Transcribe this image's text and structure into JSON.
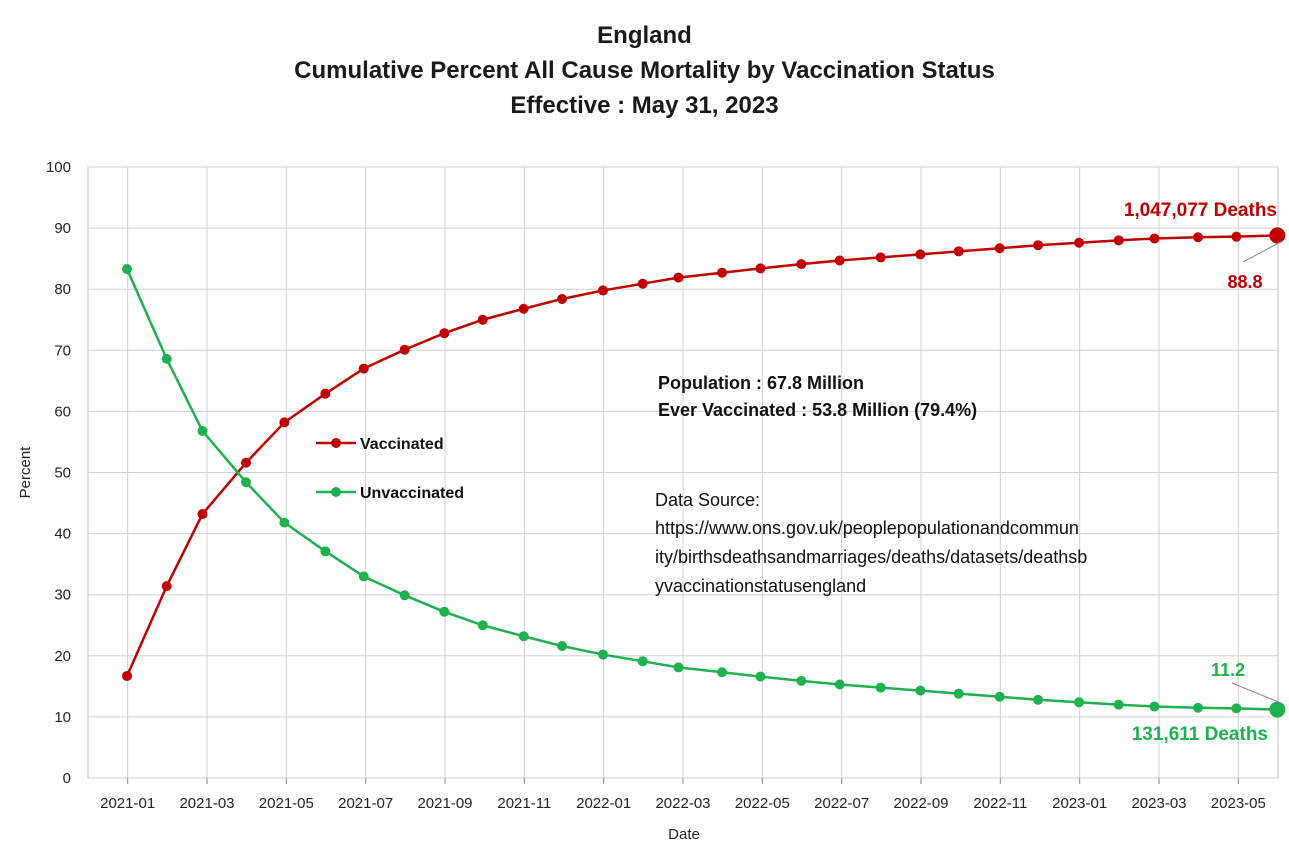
{
  "titles": {
    "line1": "England",
    "line2": "Cumulative Percent All Cause Mortality by Vaccination Status",
    "line3": "Effective : May 31, 2023"
  },
  "info": {
    "population": "Population : 67.8 Million",
    "ever_vaccinated": "Ever Vaccinated : 53.8 Million (79.4%)",
    "source_label": "Data Source:",
    "source_lines": [
      "https://www.ons.gov.uk/peoplepopulationandcommun",
      "ity/birthsdeathsandmarriages/deaths/datasets/deathsb",
      "yvaccinationstatusengland"
    ]
  },
  "annotations": {
    "vaccinated_deaths": "1,047,077 Deaths",
    "vaccinated_last": "88.8",
    "unvaccinated_deaths": "131,611 Deaths",
    "unvaccinated_last": "11.2"
  },
  "colors": {
    "vaccinated": "#c00000",
    "unvaccinated": "#1fb14f",
    "grid": "#d0d0d0"
  },
  "chart_data": {
    "type": "line",
    "xlabel": "Date",
    "ylabel": "Percent",
    "ylim": [
      0,
      100
    ],
    "yticks": [
      0,
      10,
      20,
      30,
      40,
      50,
      60,
      70,
      80,
      90,
      100
    ],
    "xlim": [
      "2020-12",
      "2023-06"
    ],
    "xticks": [
      "2021-01",
      "2021-03",
      "2021-05",
      "2021-07",
      "2021-09",
      "2021-11",
      "2022-01",
      "2022-03",
      "2022-05",
      "2022-07",
      "2022-09",
      "2022-11",
      "2023-01",
      "2023-03",
      "2023-05"
    ],
    "grid": true,
    "legend": "center-left",
    "x": [
      "2020-12-31",
      "2021-01-31",
      "2021-02-28",
      "2021-03-31",
      "2021-04-30",
      "2021-05-31",
      "2021-06-30",
      "2021-07-31",
      "2021-08-31",
      "2021-09-30",
      "2021-10-31",
      "2021-11-30",
      "2021-12-31",
      "2022-01-31",
      "2022-02-28",
      "2022-03-31",
      "2022-04-30",
      "2022-05-31",
      "2022-06-30",
      "2022-07-31",
      "2022-08-31",
      "2022-09-30",
      "2022-10-31",
      "2022-11-30",
      "2022-12-31",
      "2023-01-31",
      "2023-02-28",
      "2023-03-31",
      "2023-04-30",
      "2023-05-31"
    ],
    "series": [
      {
        "name": "Vaccinated",
        "values": [
          16.7,
          31.4,
          43.2,
          51.6,
          58.2,
          62.9,
          67.0,
          70.1,
          72.8,
          75.0,
          76.8,
          78.4,
          79.8,
          80.9,
          81.9,
          82.7,
          83.4,
          84.1,
          84.7,
          85.2,
          85.7,
          86.2,
          86.7,
          87.2,
          87.6,
          88.0,
          88.3,
          88.5,
          88.6,
          88.8
        ]
      },
      {
        "name": "Unvaccinated",
        "values": [
          83.3,
          68.6,
          56.8,
          48.4,
          41.8,
          37.1,
          33.0,
          29.9,
          27.2,
          25.0,
          23.2,
          21.6,
          20.2,
          19.1,
          18.1,
          17.3,
          16.6,
          15.9,
          15.3,
          14.8,
          14.3,
          13.8,
          13.3,
          12.8,
          12.4,
          12.0,
          11.7,
          11.5,
          11.4,
          11.2
        ]
      }
    ]
  }
}
